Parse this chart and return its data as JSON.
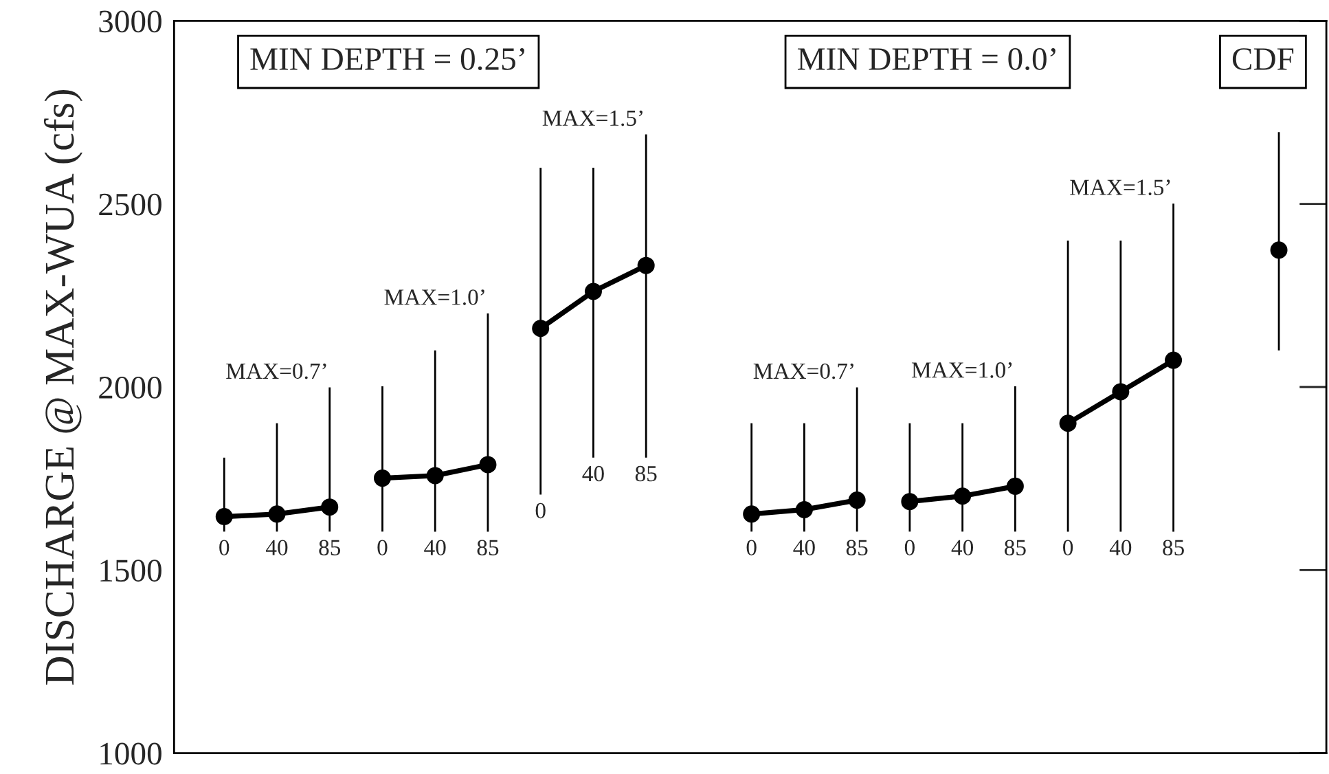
{
  "chart_data": {
    "type": "line",
    "ylabel": "DISCHARGE @ MAX-WUA (cfs)",
    "categories": [
      "0",
      "40",
      "85",
      "0",
      "40",
      "85",
      "0",
      "40",
      "85",
      null,
      "0",
      "40",
      "85",
      "0",
      "40",
      "85",
      "0",
      "40",
      "85",
      null,
      null
    ],
    "series": [
      {
        "color": "#000000",
        "values": [
          1646,
          1653,
          1672,
          null,
          null,
          null,
          null,
          null,
          null,
          null,
          null,
          null,
          null,
          null,
          null,
          null,
          null,
          null,
          null,
          null,
          null
        ],
        "errors": [
          [
            1605,
            1807
          ],
          [
            1605,
            1901
          ],
          [
            1605,
            1999
          ],
          null,
          null,
          null,
          null,
          null,
          null,
          null,
          null,
          null,
          null,
          null,
          null,
          null,
          null,
          null,
          null,
          null,
          null
        ]
      },
      {
        "color": "#000000",
        "values": [
          null,
          null,
          null,
          1751,
          1758,
          1788,
          null,
          null,
          null,
          null,
          null,
          null,
          null,
          null,
          null,
          null,
          null,
          null,
          null,
          null,
          null
        ],
        "errors": [
          null,
          null,
          null,
          [
            1605,
            2002
          ],
          [
            1605,
            2100
          ],
          [
            1605,
            2201
          ],
          null,
          null,
          null,
          null,
          null,
          null,
          null,
          null,
          null,
          null,
          null,
          null,
          null,
          null,
          null
        ]
      },
      {
        "color": "#000000",
        "values": [
          null,
          null,
          null,
          null,
          null,
          null,
          2160,
          2261,
          2332,
          null,
          null,
          null,
          null,
          null,
          null,
          null,
          null,
          null,
          null,
          null,
          null
        ],
        "errors": [
          null,
          null,
          null,
          null,
          null,
          null,
          [
            1706,
            2599
          ],
          [
            1807,
            2599
          ],
          [
            1807,
            2690
          ],
          null,
          null,
          null,
          null,
          null,
          null,
          null,
          null,
          null,
          null,
          null,
          null
        ]
      },
      {
        "color": "#000000",
        "values": [
          null,
          null,
          null,
          null,
          null,
          null,
          null,
          null,
          null,
          null,
          1653,
          1665,
          1691,
          null,
          null,
          null,
          null,
          null,
          null,
          null,
          null
        ],
        "errors": [
          null,
          null,
          null,
          null,
          null,
          null,
          null,
          null,
          null,
          null,
          [
            1605,
            1901
          ],
          [
            1605,
            1901
          ],
          [
            1605,
            1999
          ],
          null,
          null,
          null,
          null,
          null,
          null,
          null,
          null
        ]
      },
      {
        "color": "#000000",
        "values": [
          null,
          null,
          null,
          null,
          null,
          null,
          null,
          null,
          null,
          null,
          null,
          null,
          null,
          1687,
          1702,
          1729,
          null,
          null,
          null,
          null,
          null
        ],
        "errors": [
          null,
          null,
          null,
          null,
          null,
          null,
          null,
          null,
          null,
          null,
          null,
          null,
          null,
          [
            1605,
            1901
          ],
          [
            1605,
            1901
          ],
          [
            1605,
            2002
          ],
          null,
          null,
          null,
          null,
          null
        ]
      },
      {
        "color": "#000000",
        "values": [
          null,
          null,
          null,
          null,
          null,
          null,
          null,
          null,
          null,
          null,
          null,
          null,
          null,
          null,
          null,
          null,
          1901,
          1987,
          2073,
          null,
          null
        ],
        "errors": [
          null,
          null,
          null,
          null,
          null,
          null,
          null,
          null,
          null,
          null,
          null,
          null,
          null,
          null,
          null,
          null,
          [
            1605,
            2400
          ],
          [
            1605,
            2400
          ],
          [
            1605,
            2501
          ],
          null,
          null
        ]
      },
      {
        "color": "#000000",
        "values": [
          null,
          null,
          null,
          null,
          null,
          null,
          null,
          null,
          null,
          null,
          null,
          null,
          null,
          null,
          null,
          null,
          null,
          null,
          null,
          null,
          2374
        ],
        "errors": [
          null,
          null,
          null,
          null,
          null,
          null,
          null,
          null,
          null,
          null,
          null,
          null,
          null,
          null,
          null,
          null,
          null,
          null,
          null,
          null,
          [
            2100,
            2696
          ]
        ]
      }
    ],
    "annotations": [
      "MIN DEPTH = 0.25’",
      "MIN DEPTH = 0.0’",
      "CDF",
      "MAX=0.7’",
      "MAX=1.0’",
      "MAX=1.5’",
      "MAX=0.7’",
      "MAX=1.0’",
      "MAX=1.5’"
    ],
    "ylim": [
      1000,
      3000
    ],
    "yticks": [
      1000,
      1500,
      2000,
      2500,
      3000
    ],
    "tick_labels": "y",
    "grid": false,
    "legend": false,
    "marker": "circle",
    "line_style": "solid"
  }
}
